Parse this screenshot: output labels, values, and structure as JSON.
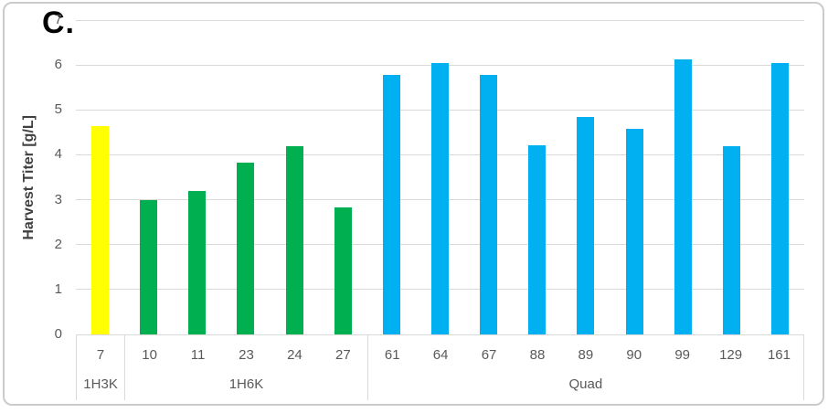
{
  "panel_label": "C.",
  "chart_data": {
    "type": "bar",
    "title": "",
    "xlabel": "",
    "ylabel": "Harvest Titer [g/L]",
    "ylim": [
      0,
      7
    ],
    "yticks": [
      0,
      1,
      2,
      3,
      4,
      5,
      6,
      7
    ],
    "grid": true,
    "legend": false,
    "groups": [
      {
        "name": "1H3K",
        "color": "#FFFF00",
        "categories": [
          "7"
        ],
        "values": [
          4.65
        ]
      },
      {
        "name": "1H6K",
        "color": "#00B050",
        "categories": [
          "10",
          "11",
          "23",
          "24",
          "27"
        ],
        "values": [
          3.0,
          3.2,
          3.83,
          4.2,
          2.82
        ]
      },
      {
        "name": "Quad",
        "color": "#00B0F0",
        "categories": [
          "61",
          "64",
          "67",
          "88",
          "89",
          "90",
          "99",
          "129",
          "161"
        ],
        "values": [
          5.78,
          6.05,
          5.77,
          4.22,
          4.85,
          4.58,
          6.13,
          4.2,
          6.05
        ]
      }
    ]
  },
  "colors": {
    "gridline": "#D9D9D9",
    "axis_border": "#D9D9D9",
    "tick_text": "#595959",
    "axis_title_text": "#404040",
    "panel_label_text": "#000000",
    "frame_border": "#CBCBCB"
  }
}
